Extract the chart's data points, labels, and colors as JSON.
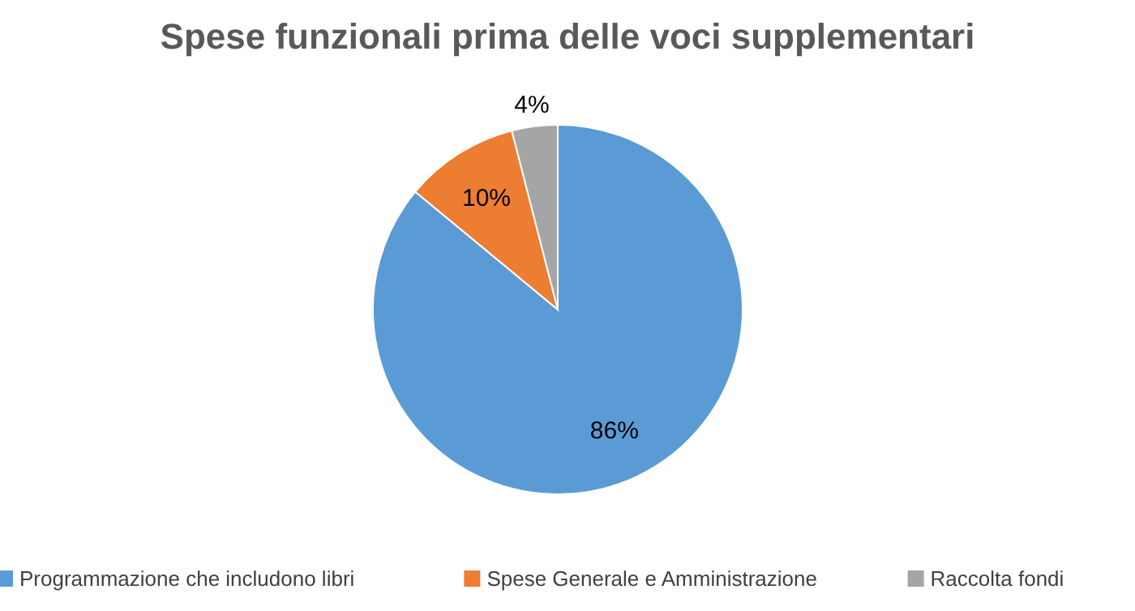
{
  "chart_data": {
    "type": "pie",
    "title": "Spese funzionali prima delle voci supplementari",
    "categories": [
      "Programmazione che includono libri",
      "Spese Generale e Amministrazione",
      "Raccolta fondi"
    ],
    "values": [
      86,
      10,
      4
    ],
    "colors": [
      "#5b9bd5",
      "#ed7d31",
      "#a5a5a5"
    ],
    "value_labels": [
      "86%",
      "10%",
      "4%"
    ],
    "legend": "bottom"
  }
}
